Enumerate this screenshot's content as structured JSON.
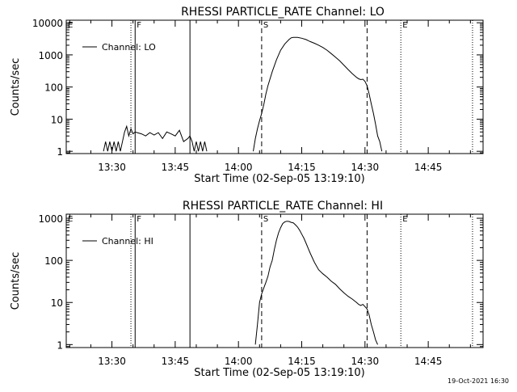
{
  "footer": {
    "timestamp": "19-Oct-2021 16:30"
  },
  "chart_data": [
    {
      "type": "line",
      "title": "RHESSI PARTICLE_RATE Channel: LO",
      "xlabel": "Start Time (02-Sep-05 13:19:10)",
      "ylabel": "Counts/sec",
      "y_scale": "log",
      "ylim": [
        0.85,
        12000
      ],
      "xlim": [
        "13:19:10",
        "14:58:00"
      ],
      "x_ticks": [
        "13:30",
        "13:45",
        "14:00",
        "14:15",
        "14:30",
        "14:45"
      ],
      "y_ticks": [
        "1",
        "10",
        "100",
        "1000",
        "10000"
      ],
      "legend": {
        "position": "top-left",
        "entries": [
          "Channel: LO"
        ]
      },
      "grid": false,
      "markers": [
        {
          "label": "E",
          "time": "13:19:10",
          "style": "dotted"
        },
        {
          "label": "",
          "time": "13:34:30",
          "style": "dotted"
        },
        {
          "label": "F",
          "time": "13:35:30",
          "style": "solid"
        },
        {
          "label": "",
          "time": "13:48:30",
          "style": "solid"
        },
        {
          "label": "S",
          "time": "14:05:30",
          "style": "dashed"
        },
        {
          "label": "",
          "time": "14:30:30",
          "style": "dashed"
        },
        {
          "label": "E",
          "time": "14:38:30",
          "style": "dotted"
        },
        {
          "label": "",
          "time": "14:55:30",
          "style": "dotted"
        }
      ],
      "series": [
        {
          "name": "Channel: LO",
          "segments": [
            {
              "x": [
                "13:28:00",
                "13:28:30",
                "13:29:00",
                "13:29:30",
                "13:30:00",
                "13:30:30",
                "13:31:00",
                "13:31:30",
                "13:32:00",
                "13:32:30",
                "13:33:00",
                "13:33:30",
                "13:34:00",
                "13:34:30",
                "13:35:00",
                "13:35:30",
                "13:36:00",
                "13:37:00",
                "13:38:00",
                "13:39:00",
                "13:40:00",
                "13:41:00",
                "13:42:00",
                "13:43:00",
                "13:44:00",
                "13:45:00",
                "13:46:00",
                "13:47:00",
                "13:48:00",
                "13:48:30",
                "13:49:00",
                "13:49:30",
                "13:50:00",
                "13:50:30",
                "13:51:00",
                "13:51:30",
                "13:52:00",
                "13:52:30"
              ],
              "y": [
                1,
                2,
                1,
                2,
                1,
                2,
                1,
                2,
                1,
                2,
                4,
                6,
                3,
                5,
                3.5,
                4,
                3.8,
                3.5,
                3,
                3.8,
                3.2,
                3.8,
                2.5,
                4,
                3.5,
                3,
                4.5,
                2,
                2.5,
                3,
                2,
                1,
                2,
                1,
                2,
                1,
                2,
                1
              ]
            },
            {
              "x": [
                "14:03:30",
                "14:04:00",
                "14:04:30",
                "14:05:00",
                "14:05:30",
                "14:06:00",
                "14:06:30",
                "14:07:00",
                "14:08:00",
                "14:09:00",
                "14:10:00",
                "14:11:00",
                "14:12:00",
                "14:12:30",
                "14:13:00",
                "14:14:00",
                "14:15:00",
                "14:16:00",
                "14:17:00",
                "14:18:00",
                "14:19:00",
                "14:20:00",
                "14:21:00",
                "14:22:00",
                "14:23:00",
                "14:24:00",
                "14:25:00",
                "14:26:00",
                "14:27:00",
                "14:28:00",
                "14:28:30",
                "14:29:00",
                "14:29:30",
                "14:30:00",
                "14:30:30",
                "14:31:00",
                "14:31:30",
                "14:32:00",
                "14:32:30",
                "14:33:00",
                "14:33:30",
                "14:34:00"
              ],
              "y": [
                1,
                2.5,
                5,
                9,
                15,
                28,
                60,
                110,
                300,
                700,
                1400,
                2200,
                3000,
                3400,
                3500,
                3500,
                3300,
                3000,
                2600,
                2300,
                2000,
                1700,
                1400,
                1100,
                850,
                650,
                480,
                350,
                260,
                200,
                180,
                170,
                175,
                150,
                110,
                60,
                30,
                15,
                7,
                3,
                2,
                1
              ]
            }
          ]
        }
      ]
    },
    {
      "type": "line",
      "title": "RHESSI PARTICLE_RATE Channel: HI",
      "xlabel": "Start Time (02-Sep-05 13:19:10)",
      "ylabel": "Counts/sec",
      "y_scale": "log",
      "ylim": [
        0.85,
        1250
      ],
      "xlim": [
        "13:19:10",
        "14:58:00"
      ],
      "x_ticks": [
        "13:30",
        "13:45",
        "14:00",
        "14:15",
        "14:30",
        "14:45"
      ],
      "y_ticks": [
        "1",
        "10",
        "100",
        "1000"
      ],
      "legend": {
        "position": "top-left",
        "entries": [
          "Channel: HI"
        ]
      },
      "grid": false,
      "markers": [
        {
          "label": "E",
          "time": "13:19:10",
          "style": "dotted"
        },
        {
          "label": "",
          "time": "13:34:30",
          "style": "dotted"
        },
        {
          "label": "F",
          "time": "13:35:30",
          "style": "solid"
        },
        {
          "label": "",
          "time": "13:48:30",
          "style": "solid"
        },
        {
          "label": "S",
          "time": "14:05:30",
          "style": "dashed"
        },
        {
          "label": "",
          "time": "14:30:30",
          "style": "dashed"
        },
        {
          "label": "E",
          "time": "14:38:30",
          "style": "dotted"
        },
        {
          "label": "",
          "time": "14:55:30",
          "style": "dotted"
        }
      ],
      "series": [
        {
          "name": "Channel: HI",
          "segments": [
            {
              "x": [
                "14:04:00",
                "14:04:30",
                "14:05:00",
                "14:05:30",
                "14:06:00",
                "14:06:30",
                "14:07:00",
                "14:07:30",
                "14:08:00",
                "14:08:30",
                "14:09:00",
                "14:09:30",
                "14:10:00",
                "14:10:30",
                "14:11:00",
                "14:11:30",
                "14:12:00",
                "14:12:30",
                "14:13:00",
                "14:13:30",
                "14:14:00",
                "14:14:30",
                "14:15:00",
                "14:15:30",
                "14:16:00",
                "14:17:00",
                "14:18:00",
                "14:19:00",
                "14:20:00",
                "14:21:00",
                "14:22:00",
                "14:23:00",
                "14:24:00",
                "14:25:00",
                "14:26:00",
                "14:27:00",
                "14:28:00",
                "14:28:30",
                "14:29:00",
                "14:29:30",
                "14:30:00",
                "14:30:30",
                "14:31:00",
                "14:31:30",
                "14:32:00",
                "14:32:30",
                "14:33:00"
              ],
              "y": [
                1,
                3,
                10,
                16,
                22,
                30,
                42,
                70,
                100,
                180,
                300,
                450,
                600,
                750,
                820,
                850,
                840,
                800,
                780,
                700,
                620,
                520,
                420,
                340,
                260,
                150,
                90,
                60,
                48,
                40,
                32,
                27,
                21,
                17,
                14,
                12,
                10,
                9,
                8.5,
                9,
                8,
                7,
                5,
                3,
                2,
                1.3,
                1
              ]
            }
          ]
        }
      ]
    }
  ]
}
